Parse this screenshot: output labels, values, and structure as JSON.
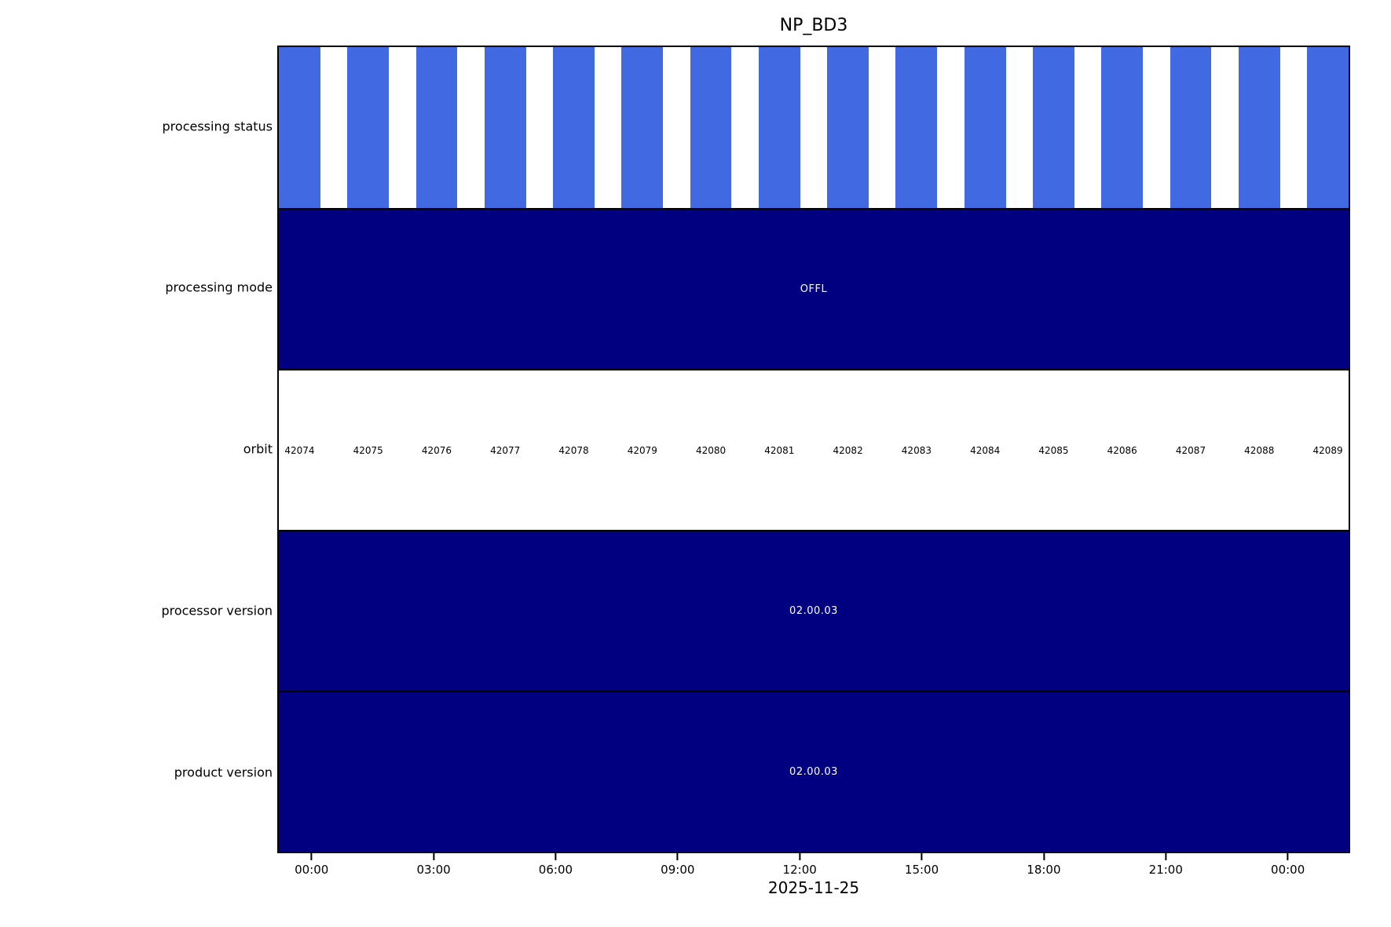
{
  "title": "NP_BD3",
  "colors": {
    "bar_blue": "#4169E1",
    "navy": "#000080",
    "text": "#000000",
    "background": "#ffffff"
  },
  "rows": {
    "processing_status": {
      "label": "processing status"
    },
    "processing_mode": {
      "label": "processing mode",
      "value": "OFFL"
    },
    "orbit": {
      "label": "orbit",
      "numbers": [
        "42074",
        "42075",
        "42076",
        "42077",
        "42078",
        "42079",
        "42080",
        "42081",
        "42082",
        "42083",
        "42084",
        "42085",
        "42086",
        "42087",
        "42088",
        "42089"
      ]
    },
    "processor_version": {
      "label": "processor version",
      "value": "02.00.03"
    },
    "product_version": {
      "label": "product version",
      "value": "02.00.03"
    }
  },
  "x_axis": {
    "ticks": [
      "00:00",
      "03:00",
      "06:00",
      "09:00",
      "12:00",
      "15:00",
      "18:00",
      "21:00",
      "00:00"
    ],
    "date_label": "2025-11-25"
  },
  "chart_data": {
    "type": "heatmap",
    "subtype": "timeline-status-bands",
    "title": "NP_BD3",
    "xlabel": "2025-11-25",
    "x_tick_labels": [
      "00:00",
      "03:00",
      "06:00",
      "09:00",
      "12:00",
      "15:00",
      "18:00",
      "21:00",
      "00:00"
    ],
    "x_tick_interval_hours": 3,
    "grid": false,
    "legend": "none",
    "rows": [
      {
        "label": "processing status",
        "type": "bar",
        "description": "one blue bar per orbit, 16 orbits, each bar covers ~60% of its orbit slot",
        "bar_count": 16,
        "bar_color": "#4169E1",
        "values": [
          1,
          1,
          1,
          1,
          1,
          1,
          1,
          1,
          1,
          1,
          1,
          1,
          1,
          1,
          1,
          1
        ]
      },
      {
        "label": "processing mode",
        "type": "span",
        "value": "OFFL",
        "fill_color": "#000080",
        "text_color": "#ffffff"
      },
      {
        "label": "orbit",
        "type": "labels",
        "fill_color": "#ffffff",
        "text_color": "#000000",
        "values": [
          42074,
          42075,
          42076,
          42077,
          42078,
          42079,
          42080,
          42081,
          42082,
          42083,
          42084,
          42085,
          42086,
          42087,
          42088,
          42089
        ]
      },
      {
        "label": "processor version",
        "type": "span",
        "value": "02.00.03",
        "fill_color": "#000080",
        "text_color": "#ffffff"
      },
      {
        "label": "product version",
        "type": "span",
        "value": "02.00.03",
        "fill_color": "#000080",
        "text_color": "#ffffff"
      }
    ]
  }
}
